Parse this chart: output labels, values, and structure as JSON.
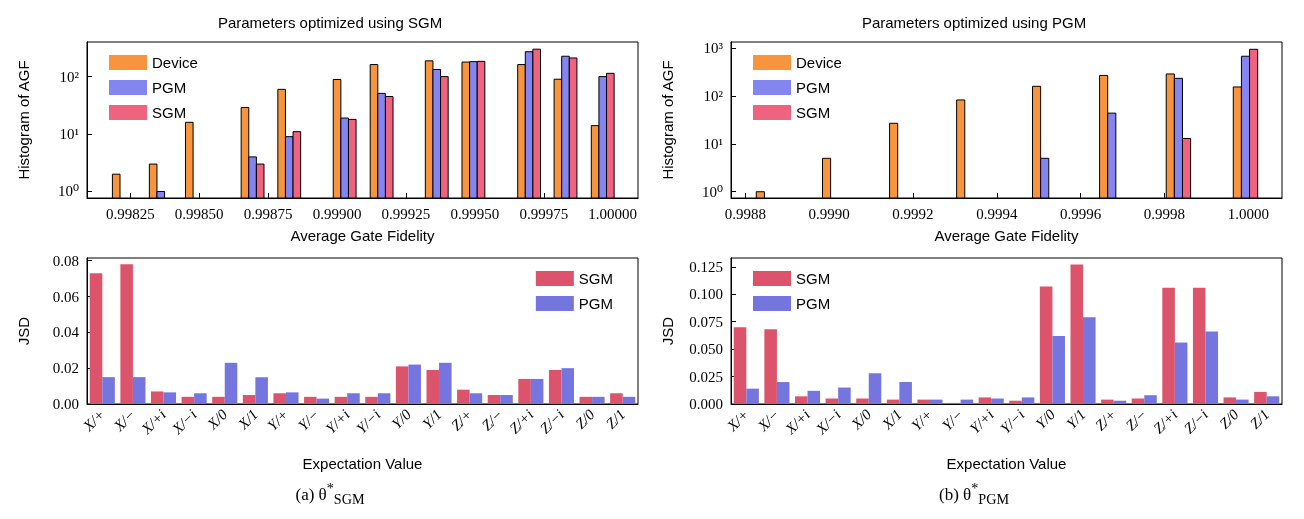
{
  "chart_data": [
    {
      "type": "bar",
      "title": "Parameters optimized using SGM",
      "xlabel": "Average Gate Fidelity",
      "ylabel": "Histogram of AGF",
      "log": "y",
      "legend": "top left",
      "xlim": [
        0.998093,
        1.0000916
      ],
      "xticks": [
        0.99825,
        {
          "value": 0.9985,
          "label": "0.99850"
        },
        0.99875,
        {
          "value": 0.999,
          "label": "0.99900"
        },
        0.99925,
        {
          "value": 0.9995,
          "label": "0.99950"
        },
        0.99975,
        {
          "value": 1,
          "label": "1.00000"
        }
      ],
      "ylim": [
        0.77,
        400
      ],
      "yticks": [
        {
          "value": 1,
          "label": "10⁰"
        },
        {
          "value": 10,
          "label": "10¹"
        },
        {
          "value": 100,
          "label": "10²"
        }
      ],
      "series": [
        {
          "name": "Device",
          "color": "#f7953f",
          "x": [
            0.998199,
            0.998333,
            0.998464,
            0.998666,
            0.998799,
            0.999,
            0.999134,
            0.999334,
            0.999467,
            0.999669,
            0.999801,
            0.999936
          ],
          "values": [
            2,
            3,
            16,
            29,
            60,
            89,
            162,
            188,
            179,
            162,
            90,
            14
          ]
        },
        {
          "name": "PGM",
          "color": "#8585f2",
          "x": [
            0.9983606,
            0.9986936,
            0.9988266,
            0.9990276,
            0.9991616,
            0.9993616,
            0.9994946,
            0.9996966,
            0.9998286,
            0.9999636
          ],
          "values": [
            1,
            4,
            9,
            19,
            51,
            133,
            182,
            271,
            226,
            100
          ]
        },
        {
          "name": "SGM",
          "color": "#f0637f",
          "x": [
            0.9987212,
            0.9988542,
            0.9990552,
            0.9991892,
            0.9993892,
            0.9995222,
            0.9997242,
            0.9998562,
            0.9999912
          ],
          "values": [
            3,
            11,
            18,
            45,
            100,
            184,
            300,
            211,
            114
          ]
        }
      ]
    },
    {
      "type": "bar",
      "title": "Parameters optimized using PGM",
      "xlabel": "Average Gate Fidelity",
      "ylabel": "Histogram of AGF",
      "log": "y",
      "legend": "top left",
      "xlim": [
        0.998766,
        1.0000805
      ],
      "xticks": [
        0.9988,
        {
          "value": 0.999,
          "label": "0.9990"
        },
        0.9992,
        0.9994,
        0.9996,
        0.9998,
        {
          "value": 1,
          "label": "1.0000"
        }
      ],
      "ylim": [
        0.74,
        1350
      ],
      "yticks": [
        {
          "value": 1,
          "label": "10⁰"
        },
        {
          "value": 10,
          "label": "10¹"
        },
        {
          "value": 100,
          "label": "10²"
        },
        {
          "value": 1000,
          "label": "10³"
        }
      ],
      "series": [
        {
          "name": "Device",
          "color": "#f7953f",
          "x": [
            0.998836,
            0.998994,
            0.999154,
            0.999314,
            0.999495,
            0.999655,
            0.999814,
            0.999974
          ],
          "values": [
            1,
            5,
            27,
            83,
            160,
            270,
            290,
            155
          ]
        },
        {
          "name": "PGM",
          "color": "#8585f2",
          "x": [
            0.9995144,
            0.9996744,
            0.9998334,
            0.9999934
          ],
          "values": [
            5,
            44,
            235,
            680
          ]
        },
        {
          "name": "SGM",
          "color": "#f0637f",
          "x": [
            0.9998528,
            1.0000128
          ],
          "values": [
            13,
            950
          ]
        }
      ]
    },
    {
      "type": "bar",
      "xlabel": "Expectation Value",
      "ylabel": "JSD",
      "legend": "top right",
      "annotations": [
        "(a) θ$^{*}$$_{SGM}$"
      ],
      "categories": [
        "X/+",
        "X/−",
        "X/+i",
        "X/−i",
        "X/0",
        "X/1",
        "Y/+",
        "Y/−",
        "Y/+i",
        "Y/−i",
        "Y/0",
        "Y/1",
        "Z/+",
        "Z/−",
        "Z/+i",
        "Z/−i",
        "Z/0",
        "Z/1"
      ],
      "ylim": [
        0,
        0.0815
      ],
      "yticks": [
        {
          "value": 0,
          "label": "0.00"
        },
        0.02,
        0.04,
        0.06,
        0.08
      ],
      "series": [
        {
          "name": "SGM",
          "color": "#dc546c",
          "values": [
            0.073,
            0.078,
            0.007,
            0.004,
            0.004,
            0.005,
            0.006,
            0.004,
            0.004,
            0.004,
            0.021,
            0.019,
            0.008,
            0.005,
            0.014,
            0.019,
            0.004,
            0.006
          ]
        },
        {
          "name": "PGM",
          "color": "#7575e0",
          "values": [
            0.015,
            0.015,
            0.0065,
            0.006,
            0.023,
            0.015,
            0.0065,
            0.003,
            0.006,
            0.006,
            0.022,
            0.023,
            0.006,
            0.005,
            0.014,
            0.02,
            0.004,
            0.004
          ]
        }
      ]
    },
    {
      "type": "bar",
      "xlabel": "Expectation Value",
      "ylabel": "JSD",
      "legend": "top left",
      "annotations": [
        "(b) θ$^{*}$$_{PGM}$"
      ],
      "categories": [
        "X/+",
        "X/−",
        "X/+i",
        "X/−i",
        "X/0",
        "X/1",
        "Y/+",
        "Y/−",
        "Y/+i",
        "Y/−i",
        "Y/0",
        "Y/1",
        "Z/+",
        "Z/−",
        "Z/+i",
        "Z/−i",
        "Z/0",
        "Z/1"
      ],
      "ylim": [
        0,
        0.133
      ],
      "yticks": [
        {
          "value": 0,
          "label": "0.000"
        },
        0.025,
        {
          "value": 0.05,
          "label": "0.050"
        },
        0.075,
        {
          "value": 0.1,
          "label": "0.100"
        },
        0.125
      ],
      "series": [
        {
          "name": "SGM",
          "color": "#dc546c",
          "values": [
            0.07,
            0.068,
            0.007,
            0.005,
            0.005,
            0.004,
            0.004,
            0.001,
            0.006,
            0.003,
            0.107,
            0.127,
            0.004,
            0.005,
            0.106,
            0.106,
            0.006,
            0.011
          ]
        },
        {
          "name": "PGM",
          "color": "#7575e0",
          "values": [
            0.014,
            0.02,
            0.012,
            0.015,
            0.028,
            0.02,
            0.004,
            0.004,
            0.005,
            0.006,
            0.062,
            0.079,
            0.003,
            0.008,
            0.056,
            0.066,
            0.004,
            0.007
          ]
        }
      ]
    }
  ]
}
